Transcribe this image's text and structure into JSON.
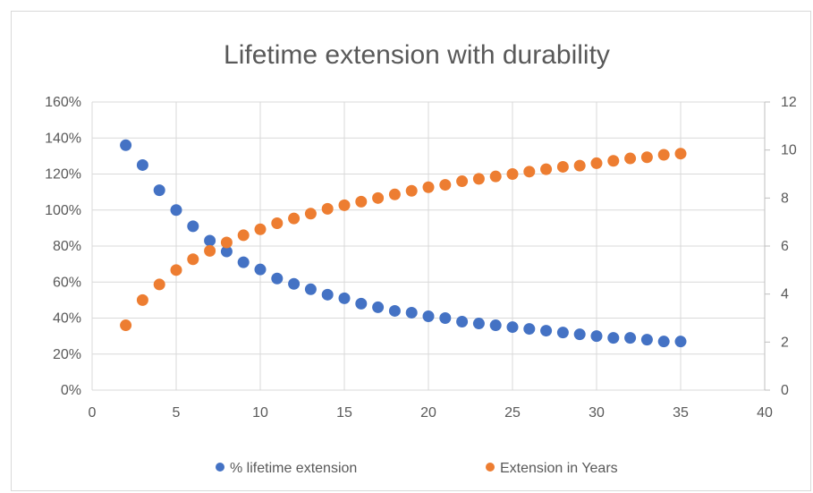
{
  "chart_data": {
    "type": "scatter",
    "title": "Lifetime extension with durability",
    "xlim": [
      0,
      40
    ],
    "x_ticks": [
      "0",
      "5",
      "10",
      "15",
      "20",
      "25",
      "30",
      "35",
      "40"
    ],
    "y_left_lim": [
      0,
      160
    ],
    "y_left_ticks": [
      "0%",
      "20%",
      "40%",
      "60%",
      "80%",
      "100%",
      "120%",
      "140%",
      "160%"
    ],
    "y_right_lim": [
      0,
      12
    ],
    "y_right_ticks": [
      "0",
      "2",
      "4",
      "6",
      "8",
      "10",
      "12"
    ],
    "grid": true,
    "legend_position": "bottom",
    "series": [
      {
        "name": "% lifetime extension",
        "axis": "left",
        "color": "#4472c4",
        "x": [
          2,
          3,
          4,
          5,
          6,
          7,
          8,
          9,
          10,
          11,
          12,
          13,
          14,
          15,
          16,
          17,
          18,
          19,
          20,
          21,
          22,
          23,
          24,
          25,
          26,
          27,
          28,
          29,
          30,
          31,
          32,
          33,
          34,
          35
        ],
        "y": [
          136,
          125,
          111,
          100,
          91,
          83,
          77,
          71,
          67,
          62,
          59,
          56,
          53,
          51,
          48,
          46,
          44,
          43,
          41,
          40,
          38,
          37,
          36,
          35,
          34,
          33,
          32,
          31,
          30,
          29,
          29,
          28,
          27,
          27
        ]
      },
      {
        "name": "Extension in Years",
        "axis": "right",
        "color": "#ed7d31",
        "x": [
          2,
          3,
          4,
          5,
          6,
          7,
          8,
          9,
          10,
          11,
          12,
          13,
          14,
          15,
          16,
          17,
          18,
          19,
          20,
          21,
          22,
          23,
          24,
          25,
          26,
          27,
          28,
          29,
          30,
          31,
          32,
          33,
          34,
          35
        ],
        "y": [
          2.7,
          3.75,
          4.4,
          5.0,
          5.45,
          5.8,
          6.15,
          6.45,
          6.7,
          6.95,
          7.15,
          7.35,
          7.55,
          7.7,
          7.85,
          8.0,
          8.15,
          8.3,
          8.45,
          8.55,
          8.7,
          8.8,
          8.9,
          9.0,
          9.1,
          9.2,
          9.3,
          9.35,
          9.45,
          9.55,
          9.65,
          9.7,
          9.8,
          9.85
        ]
      }
    ]
  }
}
